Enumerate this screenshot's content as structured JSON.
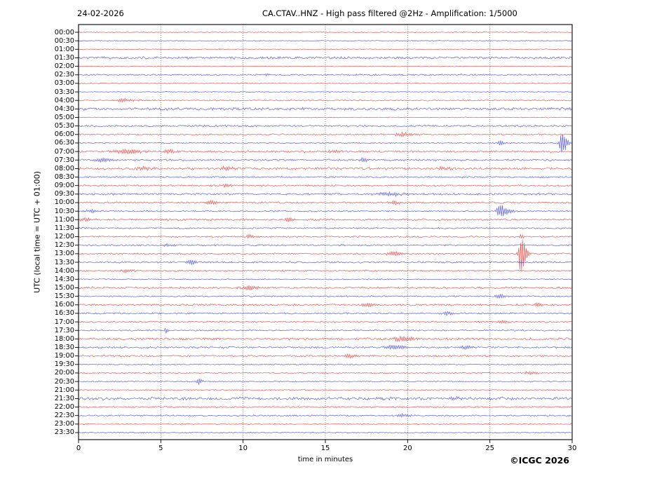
{
  "header": {
    "date": "24-02-2026",
    "title": "CA.CTAV..HNZ - High pass filtered @2Hz - Amplification: 1/5000"
  },
  "axes": {
    "ylabel": "UTC (local time = UTC + 01:00)",
    "xlabel": "time in minutes",
    "x_ticks": [
      0,
      5,
      10,
      15,
      20,
      25,
      30
    ],
    "x_range": [
      0,
      30
    ],
    "grid_minutes": [
      5,
      10,
      15,
      20,
      25
    ]
  },
  "footer": {
    "copyright": "©ICGC 2026"
  },
  "colors": {
    "red": "#e03030",
    "blue": "#3838d8",
    "grid": "#7a7a7a",
    "frame": "#000000",
    "background": "#ffffff"
  },
  "chart_data": {
    "type": "line",
    "subtype": "helicorder",
    "title": "CA.CTAV..HNZ - High pass filtered @2Hz - Amplification: 1/5000",
    "date": "24-02-2026",
    "minutes_per_row": 30,
    "rows": 48,
    "row_color_pattern": [
      "red",
      "blue"
    ],
    "row_labels": [
      "00:00",
      "00:30",
      "01:00",
      "01:30",
      "02:00",
      "02:30",
      "03:00",
      "03:30",
      "04:00",
      "04:30",
      "05:00",
      "05:30",
      "06:00",
      "06:30",
      "07:00",
      "07:30",
      "08:00",
      "08:30",
      "09:00",
      "09:30",
      "10:00",
      "10:30",
      "11:00",
      "11:30",
      "12:00",
      "12:30",
      "13:00",
      "13:30",
      "14:00",
      "14:30",
      "15:00",
      "15:30",
      "16:00",
      "16:30",
      "17:00",
      "17:30",
      "18:00",
      "18:30",
      "19:00",
      "19:30",
      "20:00",
      "20:30",
      "21:00",
      "21:30",
      "22:00",
      "22:30",
      "23:00",
      "23:30"
    ],
    "row_noise": [
      0.5,
      0.5,
      0.5,
      1.6,
      0.5,
      1.0,
      0.5,
      0.5,
      0.8,
      1.8,
      0.5,
      1.2,
      1.0,
      0.8,
      1.3,
      1.2,
      1.5,
      0.9,
      1.0,
      1.2,
      1.1,
      0.9,
      1.3,
      0.9,
      1.0,
      1.0,
      1.0,
      1.1,
      1.0,
      0.7,
      1.2,
      0.9,
      1.2,
      1.0,
      1.0,
      0.9,
      1.4,
      1.2,
      1.1,
      0.8,
      0.8,
      0.8,
      0.7,
      1.9,
      0.9,
      0.9,
      0.6,
      0.7
    ],
    "events": [
      {
        "row": 5,
        "min": 11.4,
        "amp": 2,
        "w": 0.1
      },
      {
        "row": 8,
        "min": 2.7,
        "amp": 2.5,
        "w": 0.5
      },
      {
        "row": 12,
        "min": 19.7,
        "amp": 3,
        "w": 0.5
      },
      {
        "row": 13,
        "min": 25.6,
        "amp": 5,
        "w": 0.1,
        "tail": 2
      },
      {
        "row": 13,
        "min": 29.35,
        "amp": 15,
        "w": 0.12,
        "tail": 3
      },
      {
        "row": 14,
        "min": 2.9,
        "amp": 3.5,
        "w": 0.6
      },
      {
        "row": 14,
        "min": 5.5,
        "amp": 2.5,
        "w": 0.3
      },
      {
        "row": 14,
        "min": 15.5,
        "amp": 2.5,
        "w": 0.3
      },
      {
        "row": 15,
        "min": 1.4,
        "amp": 3,
        "w": 0.4
      },
      {
        "row": 15,
        "min": 17.3,
        "amp": 3,
        "w": 0.25
      },
      {
        "row": 16,
        "min": 4.0,
        "amp": 2.5,
        "w": 0.4
      },
      {
        "row": 16,
        "min": 8.9,
        "amp": 2.5,
        "w": 0.4
      },
      {
        "row": 16,
        "min": 22.1,
        "amp": 2.5,
        "w": 0.4
      },
      {
        "row": 18,
        "min": 9.0,
        "amp": 2,
        "w": 0.3
      },
      {
        "row": 19,
        "min": 18.8,
        "amp": 2.5,
        "w": 0.8
      },
      {
        "row": 20,
        "min": 8.0,
        "amp": 3,
        "w": 0.3
      },
      {
        "row": 20,
        "min": 19.2,
        "amp": 2.5,
        "w": 0.3
      },
      {
        "row": 21,
        "min": 0.7,
        "amp": 2.5,
        "w": 0.4
      },
      {
        "row": 21,
        "min": 25.5,
        "amp": 9,
        "w": 0.12,
        "tail": 6
      },
      {
        "row": 22,
        "min": 0.4,
        "amp": 3,
        "w": 0.3
      },
      {
        "row": 22,
        "min": 12.7,
        "amp": 2.5,
        "w": 0.3
      },
      {
        "row": 24,
        "min": 10.4,
        "amp": 2.5,
        "w": 0.3
      },
      {
        "row": 24,
        "min": 26.9,
        "amp": 3,
        "w": 0.15
      },
      {
        "row": 25,
        "min": 5.4,
        "amp": 2.5,
        "w": 0.3
      },
      {
        "row": 26,
        "min": 19.1,
        "amp": 3,
        "w": 0.4
      },
      {
        "row": 26,
        "min": 26.85,
        "amp": 26,
        "w": 0.12,
        "tail": 3
      },
      {
        "row": 27,
        "min": 6.8,
        "amp": 3,
        "w": 0.3
      },
      {
        "row": 28,
        "min": 2.9,
        "amp": 3,
        "w": 0.3
      },
      {
        "row": 30,
        "min": 10.3,
        "amp": 3.5,
        "w": 0.4
      },
      {
        "row": 31,
        "min": 25.6,
        "amp": 3,
        "w": 0.3
      },
      {
        "row": 32,
        "min": 17.5,
        "amp": 3,
        "w": 0.3
      },
      {
        "row": 32,
        "min": 27.9,
        "amp": 3.5,
        "w": 0.2
      },
      {
        "row": 33,
        "min": 22.4,
        "amp": 2.5,
        "w": 0.3
      },
      {
        "row": 34,
        "min": 25.8,
        "amp": 2.5,
        "w": 0.3
      },
      {
        "row": 35,
        "min": 5.3,
        "amp": 4,
        "w": 0.1
      },
      {
        "row": 36,
        "min": 19.6,
        "amp": 4,
        "w": 0.5
      },
      {
        "row": 37,
        "min": 19.2,
        "amp": 3,
        "w": 0.5
      },
      {
        "row": 37,
        "min": 23.5,
        "amp": 2.5,
        "w": 0.3
      },
      {
        "row": 38,
        "min": 16.5,
        "amp": 3,
        "w": 0.3
      },
      {
        "row": 40,
        "min": 27.4,
        "amp": 2.5,
        "w": 0.3
      },
      {
        "row": 41,
        "min": 7.3,
        "amp": 5,
        "w": 0.1,
        "tail": 2
      },
      {
        "row": 43,
        "min": 22.8,
        "amp": 2.5,
        "w": 0.4
      },
      {
        "row": 45,
        "min": 19.7,
        "amp": 2.5,
        "w": 0.3
      }
    ]
  }
}
